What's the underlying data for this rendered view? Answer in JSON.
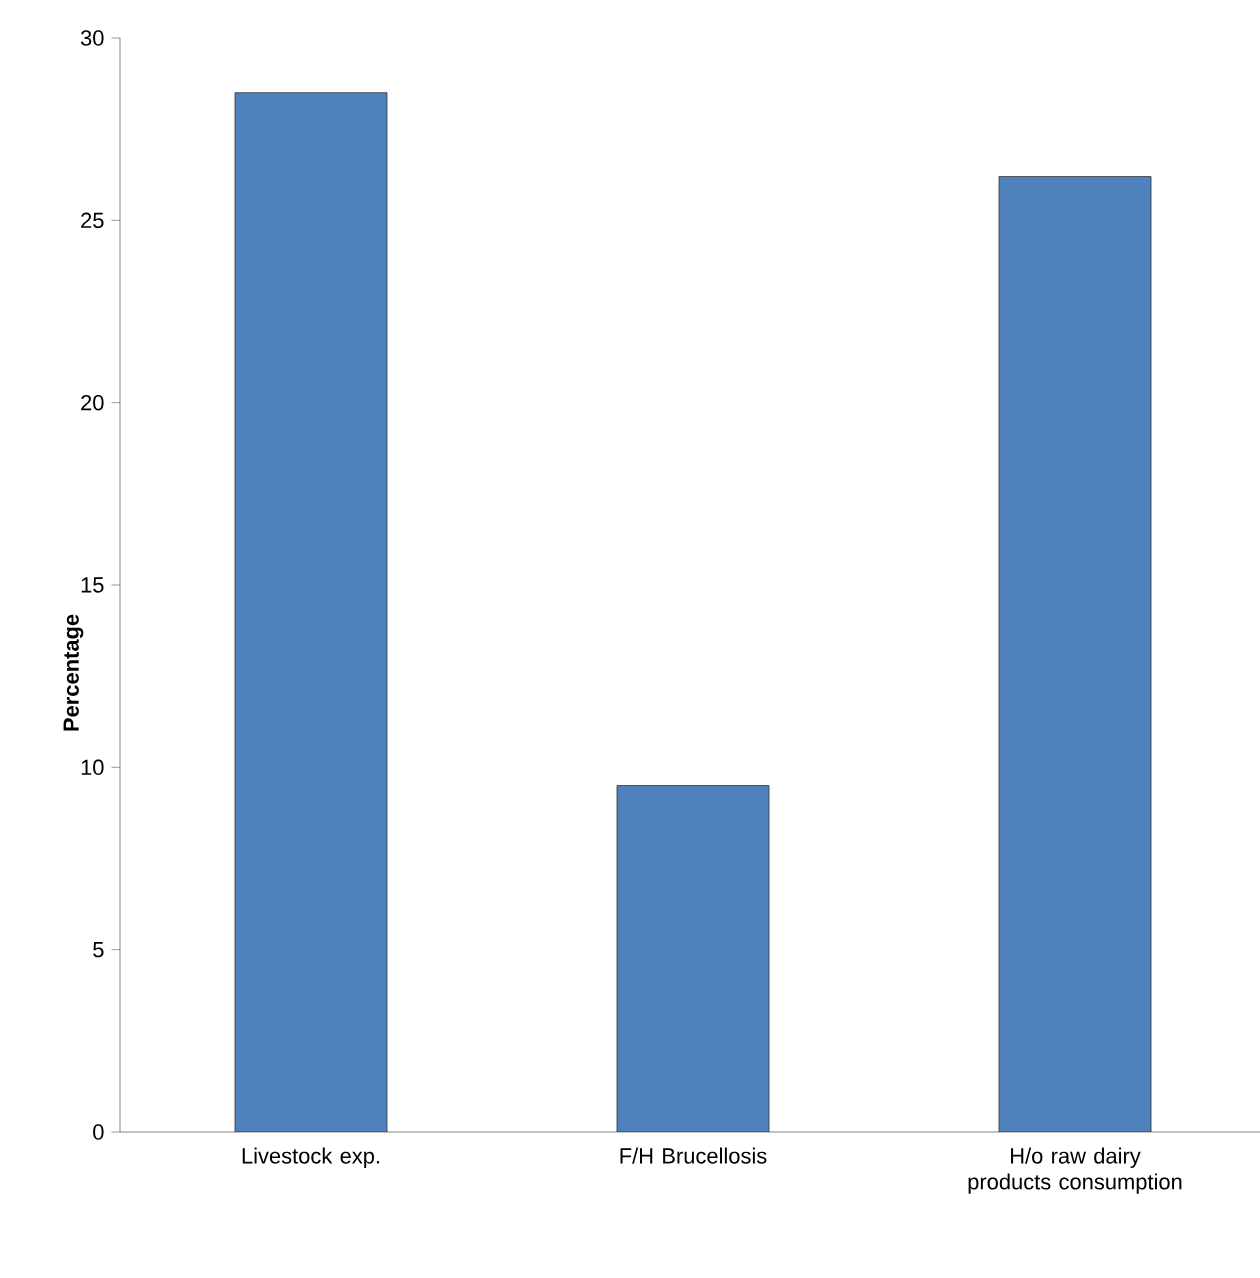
{
  "chart_data": {
    "type": "bar",
    "ylabel": "Percentage",
    "categories": [
      "Livestock exp.",
      "F/H Brucellosis",
      "H/o raw dairy products consumption"
    ],
    "values": [
      28.5,
      9.5,
      26.2
    ],
    "color": "#4f81bd",
    "ylim": [
      0,
      30
    ],
    "yticks": [
      0,
      5,
      10,
      15,
      20,
      25,
      30
    ],
    "grid": false
  }
}
